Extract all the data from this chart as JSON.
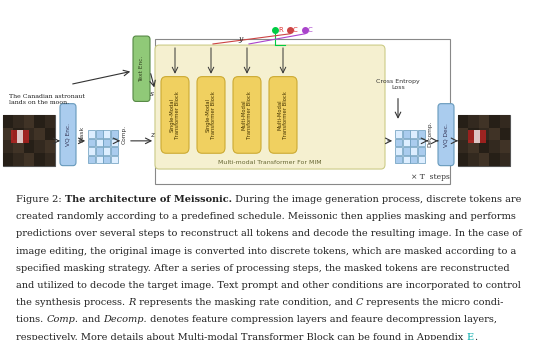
{
  "fig_width": 5.4,
  "fig_height": 3.4,
  "dpi": 100,
  "bg_color": "#ffffff",
  "caption_parts": [
    {
      "text": "Figure 2: ",
      "bold": false,
      "italic": false
    },
    {
      "text": "The architecture of Meissonic.",
      "bold": true,
      "italic": false
    },
    {
      "text": " During the image generation process, discrete tokens are\ncreated randomly according to a predefined schedule. Meissonic then applies masking and performs\npredictions over several steps to reconstruct all tokens and decode the resulting image. In the case of\nimage editing, the original image is converted into discrete tokens, which are masked according to a\nspecified masking strategy. After a series of processing steps, the masked tokens are reconstructed\nand utilized to decode the target image. Text prompt and other conditions are incorporated to control\nthe synthesis process. ",
      "bold": false,
      "italic": false
    },
    {
      "text": "R",
      "bold": false,
      "italic": true
    },
    {
      "text": " represents the masking rate condition, and ",
      "bold": false,
      "italic": false
    },
    {
      "text": "C",
      "bold": false,
      "italic": true
    },
    {
      "text": " represents the micro condi-\ntions. ",
      "bold": false,
      "italic": false
    },
    {
      "text": "Comp.",
      "bold": false,
      "italic": true
    },
    {
      "text": " and ",
      "bold": false,
      "italic": false
    },
    {
      "text": "Decomp.",
      "bold": false,
      "italic": true
    },
    {
      "text": " denotes feature compression layers and feaure decompression layers,\nrespectively. More details about Multi-modal Transformer Block can be found in Appendix ",
      "bold": false,
      "italic": false
    },
    {
      "text": "E",
      "bold": false,
      "italic": false,
      "color": "#00aaaa"
    },
    {
      "text": ".",
      "bold": false,
      "italic": false
    }
  ],
  "diagram": {
    "text_prompt": "The Canadian astronaut\nlands on the moon.",
    "vq_enc_label": "VQ Enc.",
    "vq_dec_label": "VQ Dec.",
    "text_enc_label": "Text Enc.",
    "mask_label": "Mask",
    "comp_label": "Comp.",
    "decomp_label": "Decomp.",
    "cross_entropy_label": "Cross Entropy\nLoss",
    "multi_modal_label": "Multi-modal Transformer For MIM",
    "x_T_steps": "× T  steps",
    "R_label": "R",
    "C1_label": "C",
    "C2_label": "C",
    "y_label": "y",
    "s_label": "s",
    "z_label": "z",
    "transformer_blocks": [
      "Single-Modal\nTransformer Block",
      "Single-Modal\nTransformer Block",
      "Multi-Modal\nTransformer Block",
      "Multi-Modal\nTransformer Block"
    ],
    "colors": {
      "text_enc_box": "#90c978",
      "transformer_area": "#f5f0d0",
      "transformer_block": "#f0d070",
      "grid_box": "#aaccee",
      "vq_enc_box": "#aaccee",
      "vq_dec_box": "#aaccee",
      "arrow": "#333333",
      "r_dot": "#00cc44",
      "c_dot1": "#cc4444",
      "c_dot2": "#aa44cc",
      "cross_entropy_arrow": "#333333",
      "loop_box": "#888888"
    }
  }
}
